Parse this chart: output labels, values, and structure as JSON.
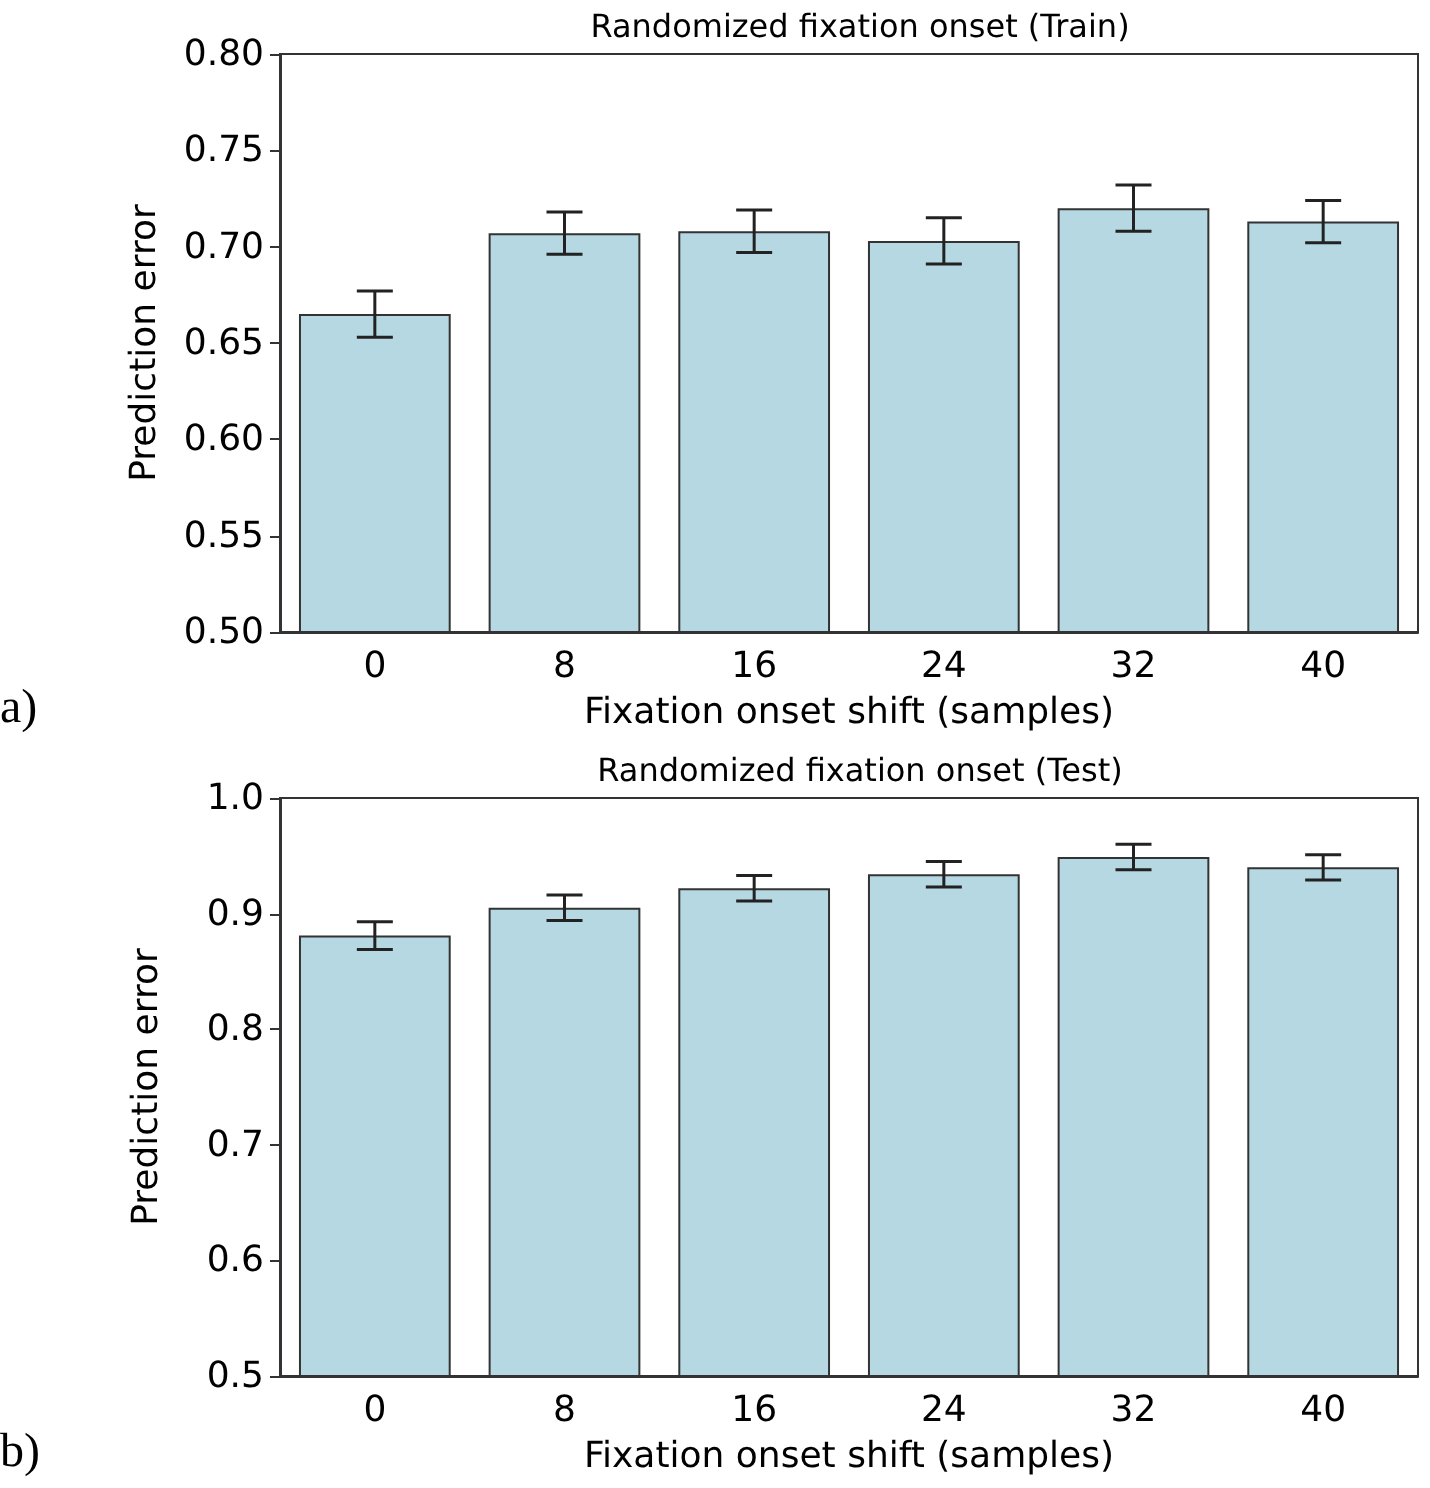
{
  "chart_data": [
    {
      "type": "bar",
      "title": "Randomized fixation onset (Train)",
      "xlabel": "Fixation onset shift (samples)",
      "ylabel": "Prediction error",
      "categories": [
        "0",
        "8",
        "16",
        "24",
        "32",
        "40"
      ],
      "values": [
        0.665,
        0.707,
        0.708,
        0.703,
        0.72,
        0.713
      ],
      "errors": [
        0.012,
        0.011,
        0.011,
        0.012,
        0.012,
        0.011
      ],
      "color": "#b5d8e3",
      "ylim": [
        0.5,
        0.8
      ],
      "yticks": [
        {
          "value": 0.5,
          "label": "0.50"
        },
        0.55,
        {
          "value": 0.6,
          "label": "0.60"
        },
        0.65,
        {
          "value": 0.7,
          "label": "0.70"
        },
        0.75,
        {
          "value": 0.8,
          "label": "0.80"
        }
      ],
      "grid": false,
      "annotations": [
        "a)"
      ]
    },
    {
      "type": "bar",
      "title": "Randomized fixation onset (Test)",
      "xlabel": "Fixation onset shift (samples)",
      "ylabel": "Prediction error",
      "categories": [
        "0",
        "8",
        "16",
        "24",
        "32",
        "40"
      ],
      "values": [
        0.881,
        0.905,
        0.922,
        0.934,
        0.949,
        0.94
      ],
      "errors": [
        0.012,
        0.011,
        0.011,
        0.011,
        0.011,
        0.011
      ],
      "color": "#b5d8e3",
      "ylim": [
        0.5,
        1.0
      ],
      "yticks": [
        0.5,
        0.6,
        0.7,
        0.8,
        0.9,
        {
          "value": 1.0,
          "label": "1.0"
        }
      ],
      "grid": false,
      "annotations": [
        "b)"
      ]
    }
  ]
}
